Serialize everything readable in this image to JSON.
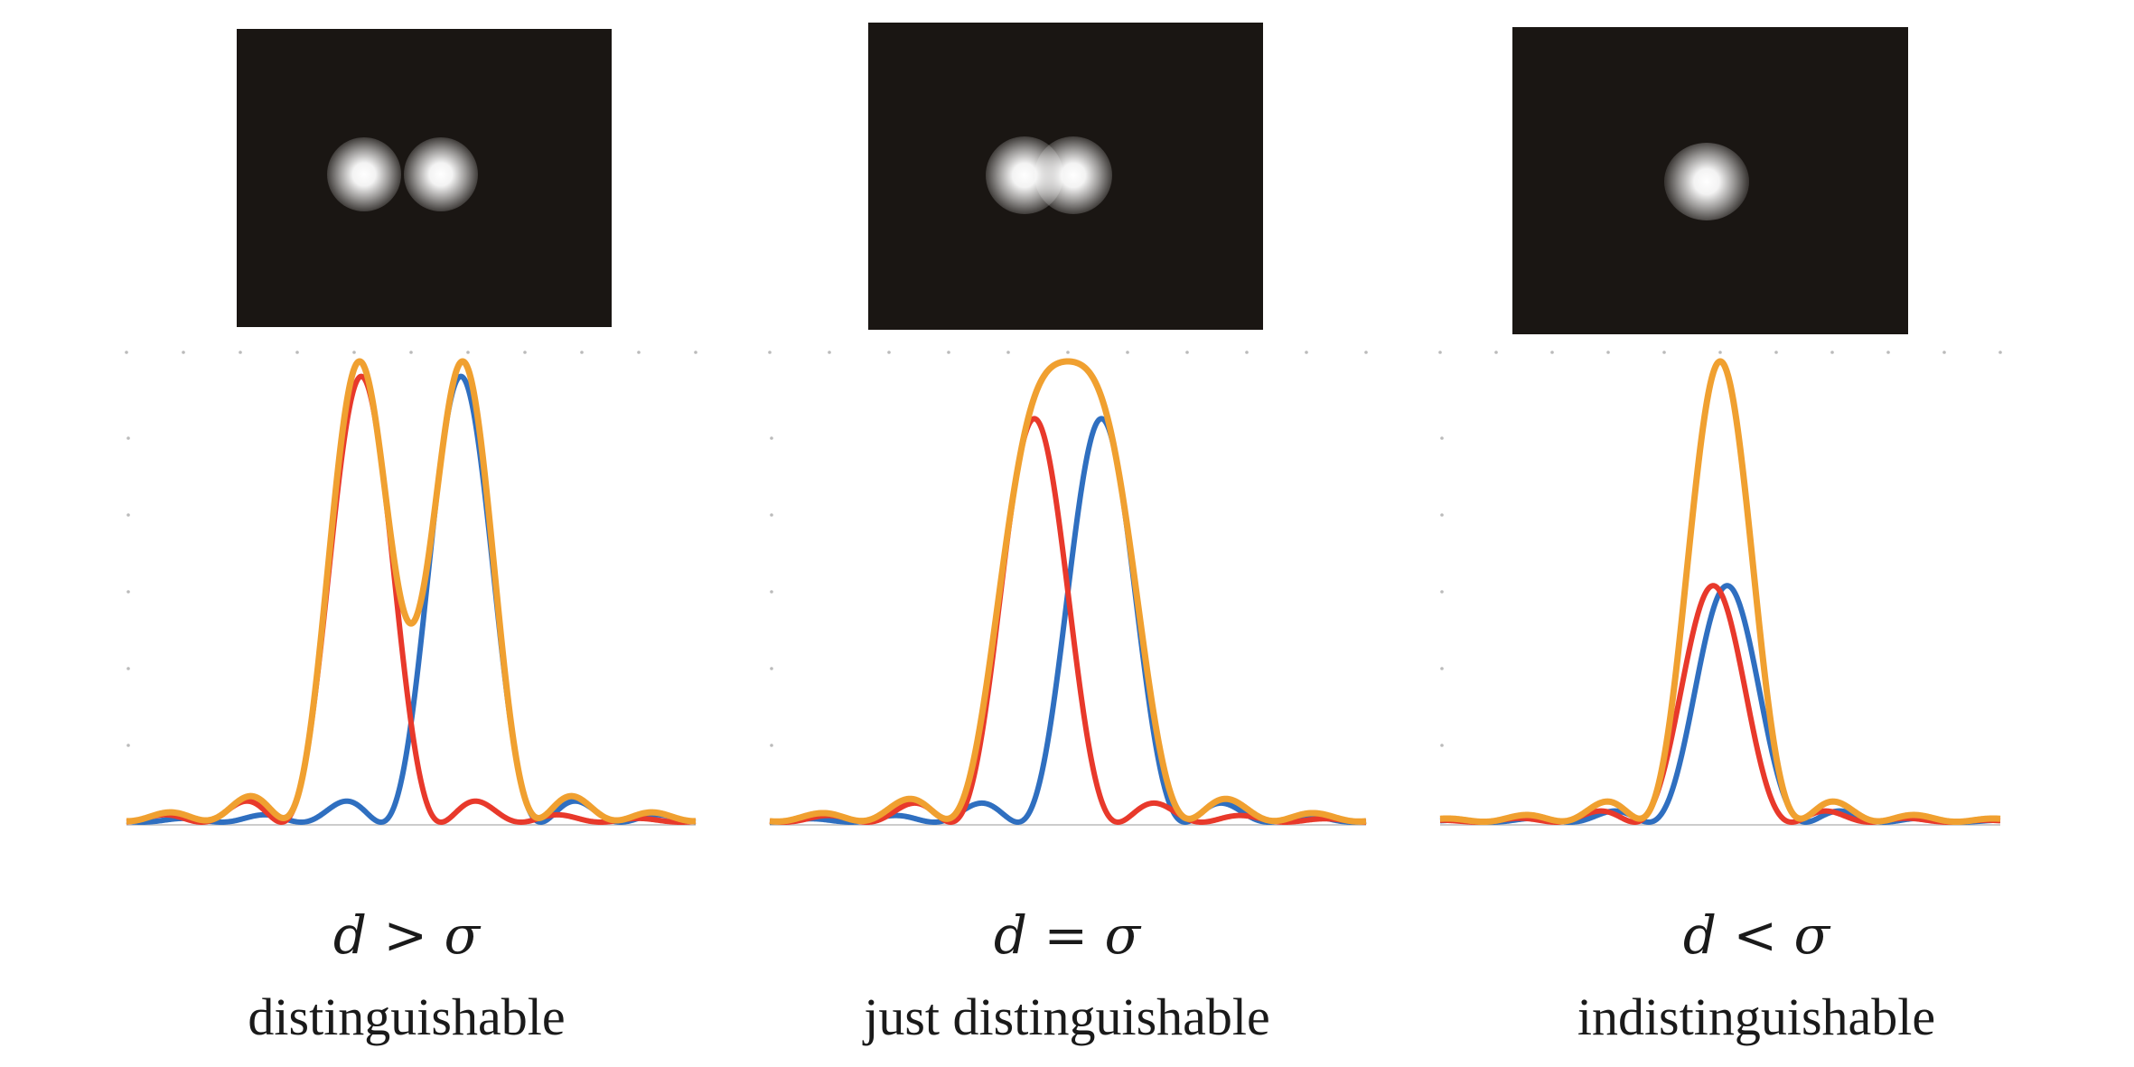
{
  "panels": [
    {
      "condition": "d > σ",
      "label": "distinguishable",
      "separation": 1.4,
      "colors": {
        "first": "#e8392b",
        "second": "#2f6fc0",
        "sum": "#f0a030"
      }
    },
    {
      "condition": "d = σ",
      "label": "just distinguishable",
      "separation": 0.9,
      "colors": {
        "first": "#e8392b",
        "second": "#2f6fc0",
        "sum": "#f0a030"
      }
    },
    {
      "condition": "d < σ",
      "label": "indistinguishable",
      "separation": 0.2,
      "colors": {
        "first": "#e8392b",
        "second": "#2f6fc0",
        "sum": "#f0a030"
      }
    }
  ]
}
